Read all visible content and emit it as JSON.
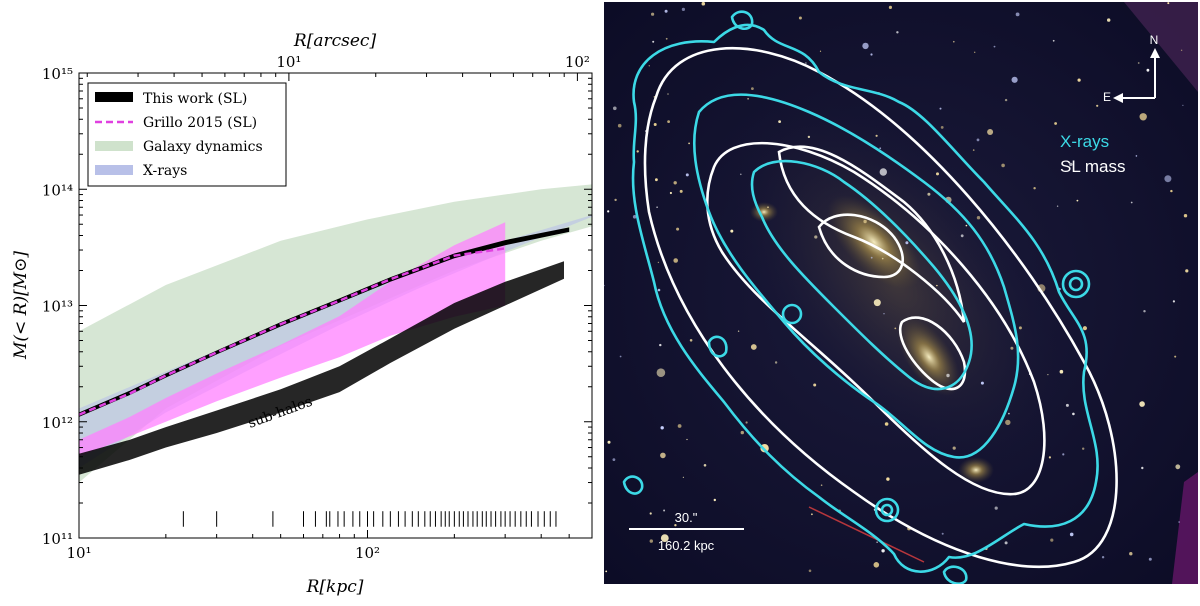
{
  "chart_data": {
    "type": "area",
    "x_scale": "log",
    "y_scale": "log",
    "xlim": [
      10,
      600
    ],
    "ylim": [
      100000000000,
      1000000000000000
    ],
    "xlabel": "R[kpc]",
    "ylabel": "M(< R)[M⊙]",
    "top_xlabel": "R[arcsec]",
    "x_ticks": [
      {
        "value": 10,
        "label": "10¹"
      },
      {
        "value": 100,
        "label": "10²"
      }
    ],
    "top_x_ticks": [
      {
        "value": 10,
        "label": "10¹"
      },
      {
        "value": 100,
        "label": "10²"
      }
    ],
    "y_ticks": [
      {
        "value": 100000000000,
        "label": "10¹¹"
      },
      {
        "value": 1000000000000,
        "label": "10¹²"
      },
      {
        "value": 10000000000000,
        "label": "10¹³"
      },
      {
        "value": 100000000000000,
        "label": "10¹⁴"
      },
      {
        "value": 1000000000000000,
        "label": "10¹⁵"
      }
    ],
    "legend_position": "top-left",
    "series": [
      {
        "name": "This work (SL)",
        "style": "band",
        "color": "#000000",
        "x": [
          10,
          15,
          20,
          30,
          50,
          80,
          120,
          200,
          300,
          500
        ],
        "lower": [
          1100000000000.0,
          1700000000000.0,
          2400000000000.0,
          3800000000000.0,
          6600000000000.0,
          10600000000000.0,
          16000000000000.0,
          25500000000000.0,
          33000000000000.0,
          43000000000000.0
        ],
        "upper": [
          1200000000000.0,
          1850000000000.0,
          2600000000000.0,
          4100000000000.0,
          7200000000000.0,
          11500000000000.0,
          17500000000000.0,
          28000000000000.0,
          36500000000000.0,
          47000000000000.0
        ]
      },
      {
        "name": "Grillo 2015 (SL)",
        "style": "dashed",
        "color": "#e040e0",
        "x": [
          10,
          15,
          20,
          30,
          50,
          80,
          120,
          200,
          300
        ],
        "y": [
          1150000000000.0,
          1750000000000.0,
          2500000000000.0,
          3950000000000.0,
          6900000000000.0,
          11000000000000.0,
          16800000000000.0,
          26800000000000.0,
          31000000000000.0
        ]
      },
      {
        "name": "Galaxy dynamics",
        "style": "band",
        "color": "#cfe2cc",
        "x": [
          10,
          20,
          50,
          100,
          200,
          400,
          600
        ],
        "lower": [
          300000000000.0,
          1300000000000.0,
          4500000000000.0,
          9500000000000.0,
          20000000000000.0,
          36000000000000.0,
          48000000000000.0
        ],
        "upper": [
          6000000000000.0,
          15000000000000.0,
          36000000000000.0,
          55000000000000.0,
          78000000000000.0,
          100000000000000.0,
          110000000000000.0
        ]
      },
      {
        "name": "X-rays",
        "style": "band",
        "color": "#b8c0e8",
        "x": [
          10,
          20,
          40,
          80,
          150,
          300,
          600
        ],
        "lower": [
          400000000000.0,
          1200000000000.0,
          2900000000000.0,
          6800000000000.0,
          14000000000000.0,
          29000000000000.0,
          58000000000000.0
        ],
        "upper": [
          1300000000000.0,
          2700000000000.0,
          5500000000000.0,
          11000000000000.0,
          20000000000000.0,
          36000000000000.0,
          60000000000000.0
        ]
      }
    ],
    "subhalo_bands": [
      {
        "color": "#ff80ff",
        "x": [
          10,
          15,
          20,
          30,
          50,
          80,
          120,
          200,
          300
        ],
        "lower": [
          500000000000.0,
          750000000000.0,
          1000000000000.0,
          1500000000000.0,
          2400000000000.0,
          3600000000000.0,
          5500000000000.0,
          8000000000000.0,
          10000000000000.0
        ],
        "upper": [
          700000000000.0,
          1100000000000.0,
          1600000000000.0,
          2600000000000.0,
          4600000000000.0,
          8100000000000.0,
          16000000000000.0,
          33000000000000.0,
          52000000000000.0
        ]
      },
      {
        "color": "#000000",
        "x": [
          10,
          15,
          20,
          30,
          50,
          80,
          120,
          200,
          300,
          480
        ],
        "lower": [
          350000000000.0,
          470000000000.0,
          600000000000.0,
          800000000000.0,
          1200000000000.0,
          1800000000000.0,
          3200000000000.0,
          6300000000000.0,
          10000000000000.0,
          17000000000000.0
        ],
        "upper": [
          530000000000.0,
          700000000000.0,
          900000000000.0,
          1250000000000.0,
          1900000000000.0,
          3000000000000.0,
          5200000000000.0,
          10500000000000.0,
          16000000000000.0,
          24000000000000.0
        ]
      }
    ],
    "annotations": [
      {
        "text": "sub-halos",
        "x": 40,
        "y": 1050000000000.0
      }
    ],
    "rug_x": [
      23,
      30,
      47,
      60,
      66,
      72,
      74,
      79,
      83,
      89,
      94,
      100,
      105,
      113,
      120,
      128,
      135,
      143,
      150,
      158,
      165,
      172,
      180,
      186,
      192,
      200,
      208,
      215,
      223,
      232,
      240,
      250,
      258,
      268,
      278,
      290,
      300,
      312,
      325,
      340,
      355,
      370,
      390,
      410,
      430,
      450
    ]
  },
  "image_panel": {
    "legend_xrays": "X-rays",
    "legend_slmass": "SL mass",
    "compass_north": "N",
    "compass_east": "E",
    "scalebar_angle": "30.\"",
    "scalebar_distance": "160.2 kpc",
    "colors": {
      "xray_contour": "#3cd9e6",
      "sl_contour": "#ffffff",
      "sky": "#101030"
    }
  }
}
